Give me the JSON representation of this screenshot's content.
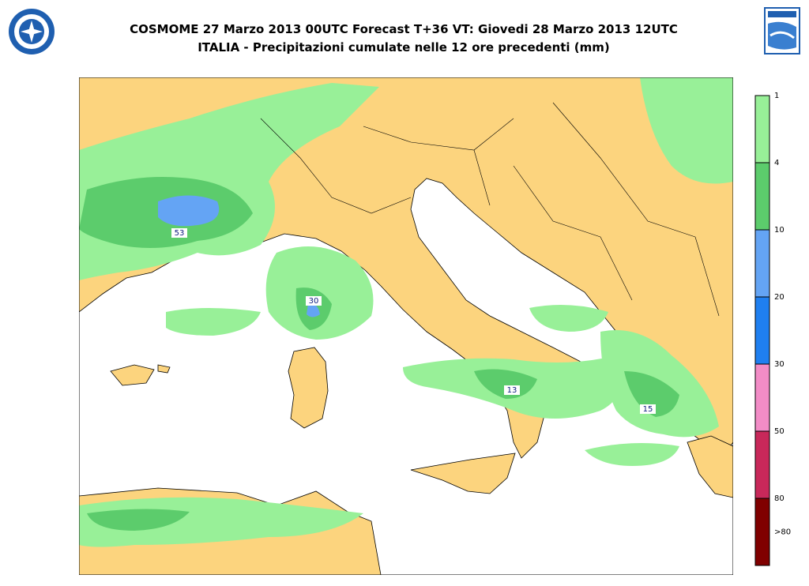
{
  "header": {
    "title_line1": "COSMOME 27 Marzo 2013 00UTC Forecast T+36 VT: Giovedi 28 Marzo 2013 12UTC",
    "title_line2": "ITALIA - Precipitazioni cumulate nelle 12 ore precedenti (mm)"
  },
  "legend": {
    "labels": [
      "1",
      "4",
      "10",
      "20",
      "30",
      "50",
      "80",
      ">80"
    ],
    "colors": [
      "#98f098",
      "#5ccc6c",
      "#64a4f4",
      "#1f7ff0",
      "#f28cc6",
      "#c8285a",
      "#800000"
    ]
  },
  "map": {
    "labels": [
      "53",
      "30",
      "13",
      "15"
    ]
  }
}
